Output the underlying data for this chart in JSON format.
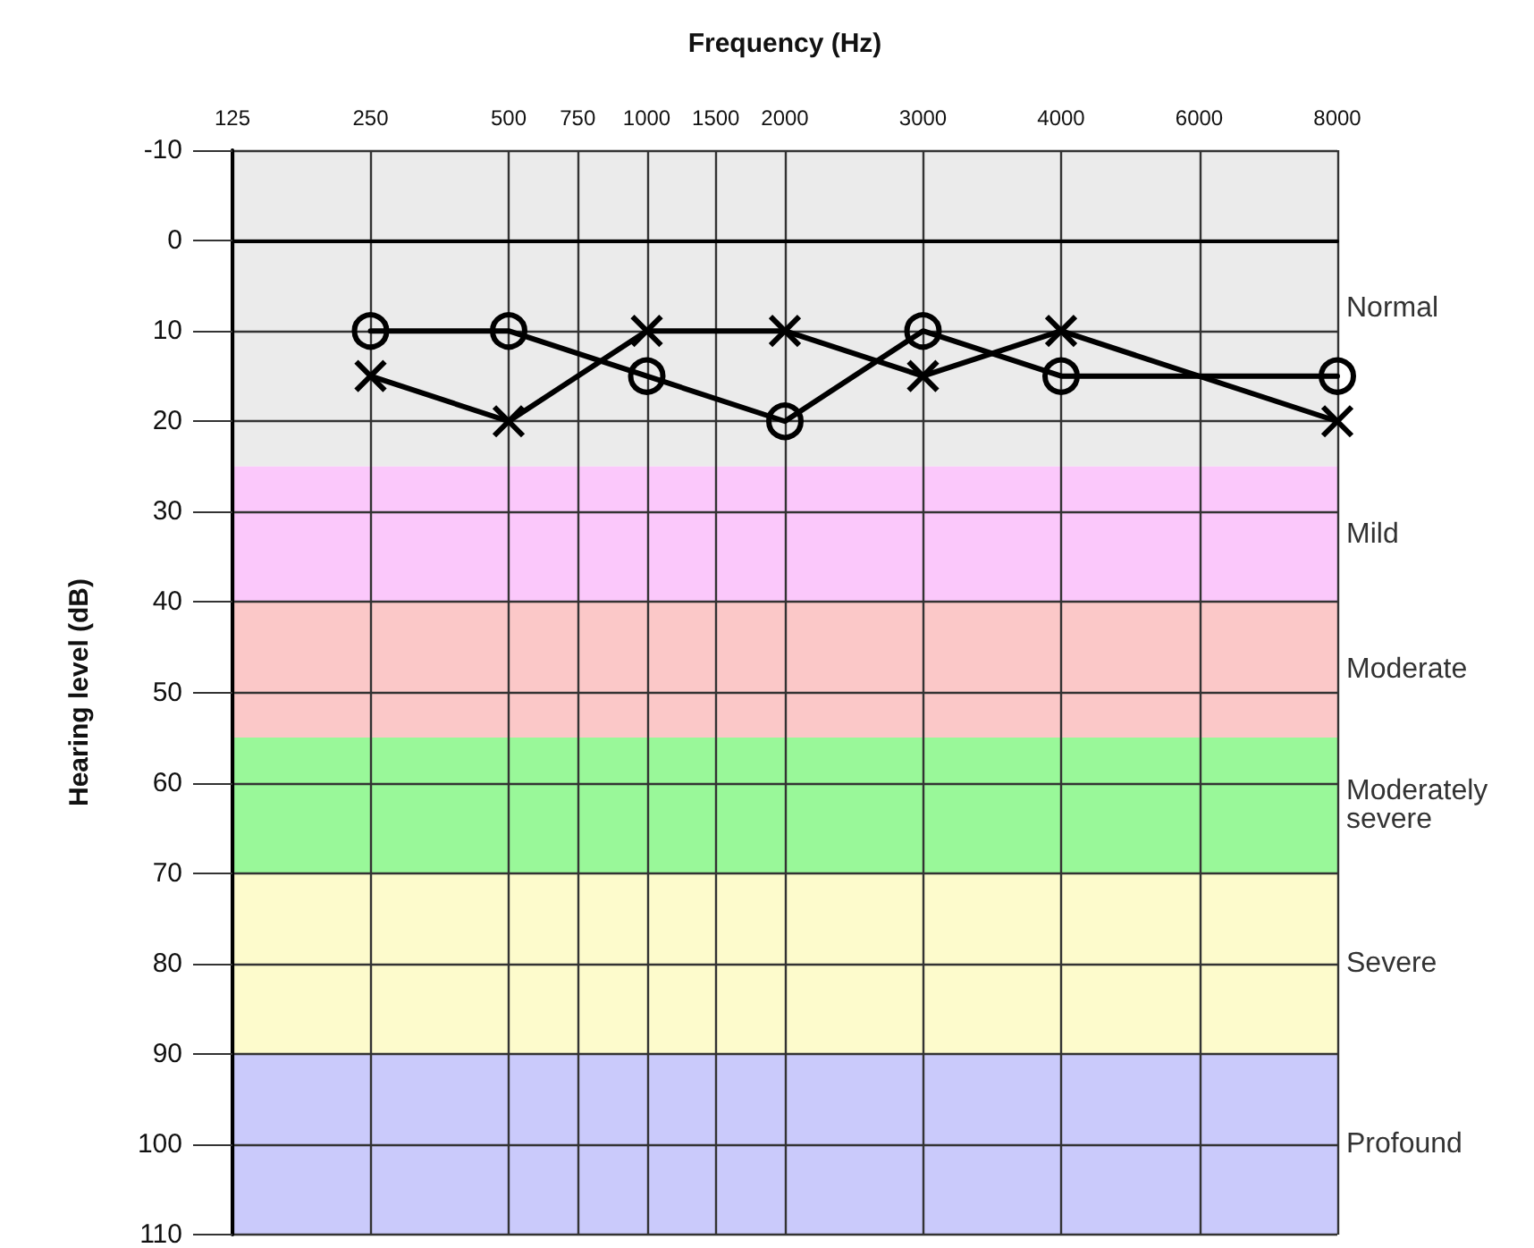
{
  "chart_data": {
    "type": "line",
    "xlabel": "Frequency (Hz)",
    "ylabel": "Hearing level (dB)",
    "categories": [
      "125",
      null,
      "250",
      null,
      "500",
      "750",
      "1000",
      "1500",
      "2000",
      null,
      "3000",
      null,
      "4000",
      null,
      "6000",
      null,
      "8000"
    ],
    "ylim": [
      110,
      -10
    ],
    "yticks": [
      -10,
      0,
      10,
      20,
      30,
      40,
      50,
      60,
      70,
      80,
      90,
      100,
      110
    ],
    "grid": true,
    "line_style": "solid",
    "series": [
      {
        "color": "#000000",
        "marker": "circle",
        "values": [
          null,
          null,
          10,
          null,
          10,
          null,
          15,
          null,
          20,
          null,
          10,
          null,
          15,
          null,
          null,
          null,
          15
        ]
      },
      {
        "color": "#000000",
        "marker": "cross",
        "values": [
          null,
          null,
          15,
          null,
          20,
          null,
          10,
          null,
          10,
          null,
          15,
          null,
          10,
          null,
          null,
          null,
          20
        ]
      }
    ],
    "bands": [
      {
        "axis": "y",
        "from": -10,
        "to": 25,
        "label": "Normal",
        "color": "#ebebeb"
      },
      {
        "axis": "y",
        "from": 25,
        "to": 40,
        "label": "Mild",
        "color": "#fbc8fb"
      },
      {
        "axis": "y",
        "from": 40,
        "to": 55,
        "label": "Moderate",
        "color": "#fbc8c8"
      },
      {
        "axis": "y",
        "from": 55,
        "to": 70,
        "label": "Moderately severe",
        "color": "#99f899"
      },
      {
        "axis": "y",
        "from": 70,
        "to": 90,
        "label": "Severe",
        "color": "#fdfbcc"
      },
      {
        "axis": "y",
        "from": 90,
        "to": 110,
        "label": "Profound",
        "color": "#cacafb"
      }
    ]
  }
}
